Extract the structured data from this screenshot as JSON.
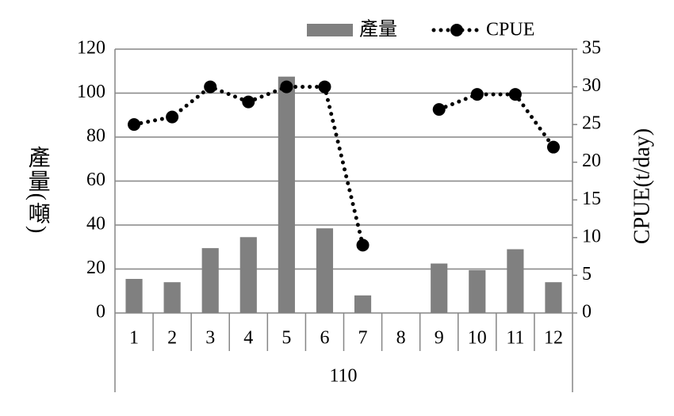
{
  "chart_data": {
    "type": "bar_line",
    "categories": [
      "1",
      "2",
      "3",
      "4",
      "5",
      "6",
      "7",
      "8",
      "9",
      "10",
      "11",
      "12"
    ],
    "group_label": "110",
    "series": [
      {
        "name": "產量",
        "type": "bar",
        "color": "#808080",
        "values": [
          15.5,
          14,
          29.5,
          34.5,
          107.5,
          38.5,
          8,
          null,
          22.5,
          19.5,
          29,
          14
        ]
      },
      {
        "name": "CPUE",
        "type": "line",
        "axis": "y2",
        "color": "#000000",
        "values": [
          25,
          26,
          30,
          28,
          30,
          30,
          9,
          null,
          27,
          29,
          29,
          22
        ]
      }
    ],
    "ylabel": "產量(噸)",
    "y2label": "CPUE(t/day)",
    "ylim": [
      0,
      120
    ],
    "yticks": [
      0,
      20,
      40,
      60,
      80,
      100,
      120
    ],
    "y2lim": [
      0,
      35
    ],
    "y2ticks": [
      0,
      5,
      10,
      15,
      20,
      25,
      30,
      35
    ],
    "grid": true,
    "legend": "top"
  }
}
